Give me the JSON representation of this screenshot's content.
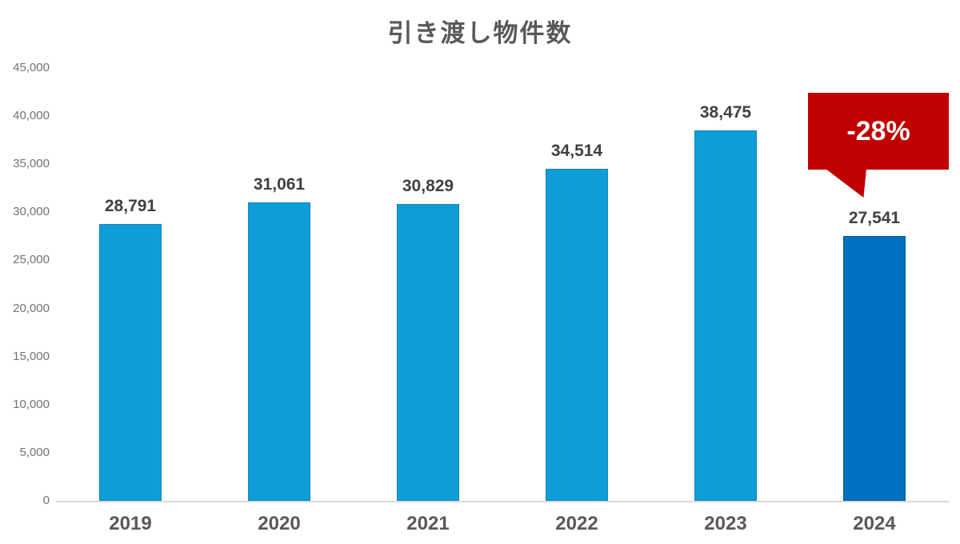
{
  "chart_data": {
    "type": "bar",
    "title": "引き渡し物件数",
    "categories": [
      "2019",
      "2020",
      "2021",
      "2022",
      "2023",
      "2024"
    ],
    "values": [
      28791,
      31061,
      30829,
      34514,
      38475,
      27541
    ],
    "value_labels": [
      "28,791",
      "31,061",
      "30,829",
      "34,514",
      "38,475",
      "27,541"
    ],
    "xlabel": "",
    "ylabel": "",
    "ylim": [
      0,
      45000
    ],
    "ytick_step": 5000,
    "ytick_labels": [
      "0",
      "5,000",
      "10,000",
      "15,000",
      "20,000",
      "25,000",
      "30,000",
      "35,000",
      "40,000",
      "45,000"
    ],
    "grid": false,
    "legend_position": "none",
    "bar_color": "#0D9ED8",
    "bar_border_color": "#1285B8",
    "highlight_index": 5,
    "highlight_color": "#0070C0",
    "highlight_border_color": "#005A9E"
  },
  "annotation": {
    "label": "-28%",
    "background_color": "#C00000",
    "text_color": "#FFFFFF"
  },
  "colors": {
    "title_text": "#595959",
    "value_label_text": "#404040",
    "axis_tick_text": "#737373",
    "category_text": "#595959",
    "axis_line": "#D9D9D9",
    "background": "#FFFFFF"
  }
}
